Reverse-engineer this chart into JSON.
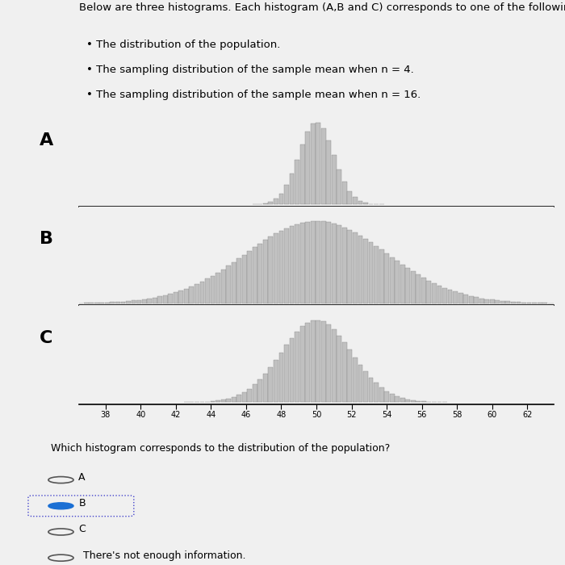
{
  "title_text": "Below are three histograms. Each histogram (A,B and C) corresponds to one of the following:",
  "bullets": [
    "The distribution of the population.",
    "The sampling distribution of the sample mean when n = 4.",
    "The sampling distribution of the sample mean when n = 16."
  ],
  "question": "Which histogram corresponds to the distribution of the population?",
  "choices": [
    "A",
    "B",
    "C",
    "There's not enough information."
  ],
  "selected": "B",
  "histogram_labels": [
    "A",
    "B",
    "C"
  ],
  "xticks": [
    38,
    40,
    42,
    44,
    46,
    48,
    50,
    52,
    54,
    56,
    58,
    60,
    62
  ],
  "mean": 50,
  "histA_std": 1.0,
  "histB_std": 4.0,
  "histC_std": 2.0,
  "bar_color": "#c0c0c0",
  "bar_edge_color": "#888888",
  "background_color": "#f0f0f0",
  "text_color": "#000000",
  "font_size_title": 9.5,
  "font_size_label": 14,
  "font_size_ticks": 7,
  "font_size_question": 9,
  "bin_width": 0.3
}
